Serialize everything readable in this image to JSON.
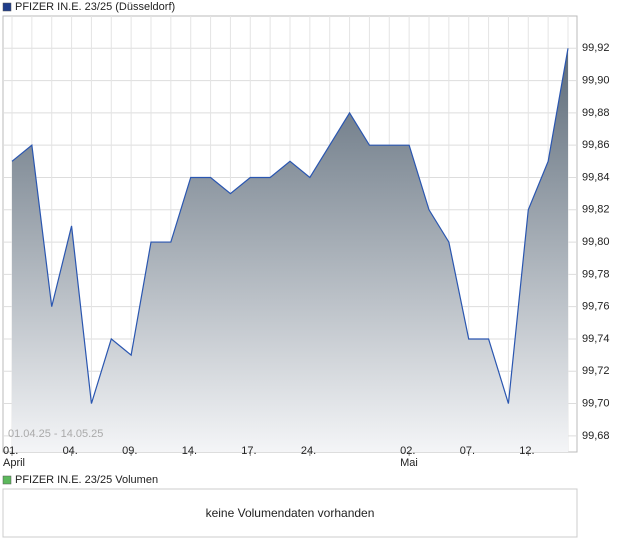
{
  "chart_data": {
    "type": "area",
    "title": "PFIZER IN.E. 23/25 (Düsseldorf)",
    "date_range": "01.04.25 - 14.05.25",
    "categories": [
      "01.",
      null,
      null,
      "04.",
      null,
      null,
      "09.",
      null,
      null,
      "14.",
      null,
      null,
      "17.",
      null,
      null,
      "24.",
      null,
      null,
      null,
      null,
      "02.",
      null,
      null,
      "07.",
      null,
      null,
      "12.",
      null,
      null
    ],
    "month_labels": [
      {
        "index": 0,
        "label": "April"
      },
      {
        "index": 20,
        "label": "Mai"
      }
    ],
    "series": [
      {
        "name": "PFIZER IN.E. 23/25 (Düsseldorf)",
        "color": "#2a56b0",
        "values": [
          99.85,
          99.86,
          99.76,
          99.81,
          99.7,
          99.74,
          99.73,
          99.8,
          99.8,
          99.84,
          99.84,
          99.83,
          99.84,
          99.84,
          99.85,
          99.84,
          99.86,
          99.88,
          99.86,
          99.86,
          99.86,
          99.82,
          99.8,
          99.74,
          99.74,
          99.7,
          99.82,
          99.85,
          99.92
        ]
      }
    ],
    "ylim": [
      99.67,
      99.94
    ],
    "yticks": [
      {
        "value": 99.68,
        "label": "99,68"
      },
      {
        "value": 99.7,
        "label": "99,70"
      },
      {
        "value": 99.72,
        "label": "99,72"
      },
      {
        "value": 99.74,
        "label": "99,74"
      },
      {
        "value": 99.76,
        "label": "99,76"
      },
      {
        "value": 99.78,
        "label": "99,78"
      },
      {
        "value": 99.8,
        "label": "99,80"
      },
      {
        "value": 99.82,
        "label": "99,82"
      },
      {
        "value": 99.84,
        "label": "99,84"
      },
      {
        "value": 99.86,
        "label": "99,86"
      },
      {
        "value": 99.88,
        "label": "99,88"
      },
      {
        "value": 99.9,
        "label": "99,90"
      },
      {
        "value": 99.92,
        "label": "99,92"
      }
    ],
    "grid": true,
    "volume": {
      "legend": "PFIZER IN.E. 23/25 Volumen",
      "legend_color": "#5cb85c",
      "message": "keine Volumendaten vorhanden"
    }
  }
}
